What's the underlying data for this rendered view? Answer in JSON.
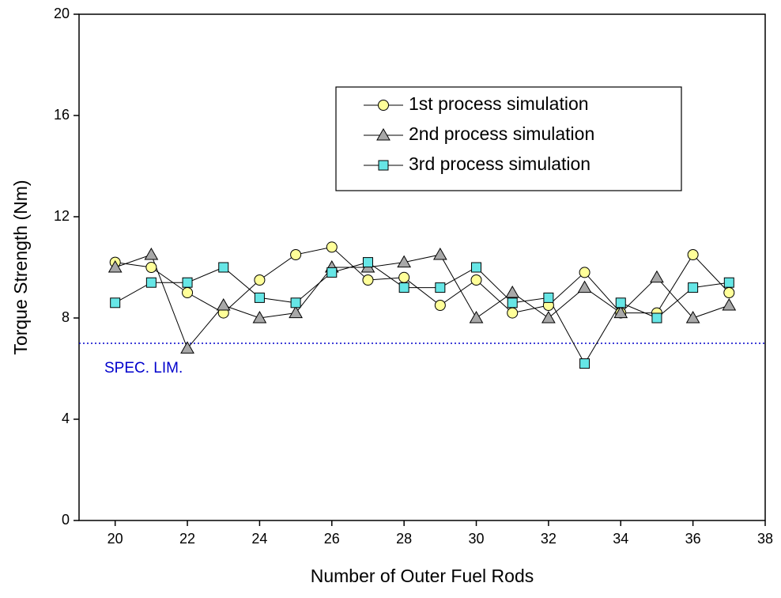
{
  "chart_data": {
    "type": "line",
    "x_label": "Number of Outer Fuel Rods",
    "y_label": "Torque Strength (Nm)",
    "x": [
      20,
      21,
      22,
      23,
      24,
      25,
      26,
      27,
      28,
      29,
      30,
      31,
      32,
      33,
      34,
      35,
      36,
      37
    ],
    "series": [
      {
        "name": "1st process simulation",
        "marker": "circle",
        "color": "#ffff99",
        "values": [
          10.2,
          10.0,
          9.0,
          8.2,
          9.5,
          10.5,
          10.8,
          9.5,
          9.6,
          8.5,
          9.5,
          8.2,
          8.5,
          9.8,
          8.2,
          8.2,
          10.5,
          9.0
        ]
      },
      {
        "name": "2nd process simulation",
        "marker": "triangle",
        "color": "#a8a8a8",
        "values": [
          10.0,
          10.5,
          6.8,
          8.5,
          8.0,
          8.2,
          10.0,
          10.0,
          10.2,
          10.5,
          8.0,
          9.0,
          8.0,
          9.2,
          8.2,
          9.6,
          8.0,
          8.5
        ]
      },
      {
        "name": "3rd process simulation",
        "marker": "square",
        "color": "#66e6e6",
        "values": [
          8.6,
          9.4,
          9.4,
          10.0,
          8.8,
          8.6,
          9.8,
          10.2,
          9.2,
          9.2,
          10.0,
          8.6,
          8.8,
          6.2,
          8.6,
          8.0,
          9.2,
          9.4
        ]
      }
    ],
    "xlim": [
      19,
      38
    ],
    "xticks": [
      20,
      22,
      24,
      26,
      28,
      30,
      32,
      34,
      36,
      38
    ],
    "ylim": [
      0,
      20
    ],
    "yticks": [
      0,
      4,
      8,
      12,
      16,
      20
    ],
    "spec_limit": {
      "value": 7,
      "label": "SPEC. LIM.",
      "color": "#0000cc"
    },
    "legend": "upper right",
    "grid": false
  }
}
